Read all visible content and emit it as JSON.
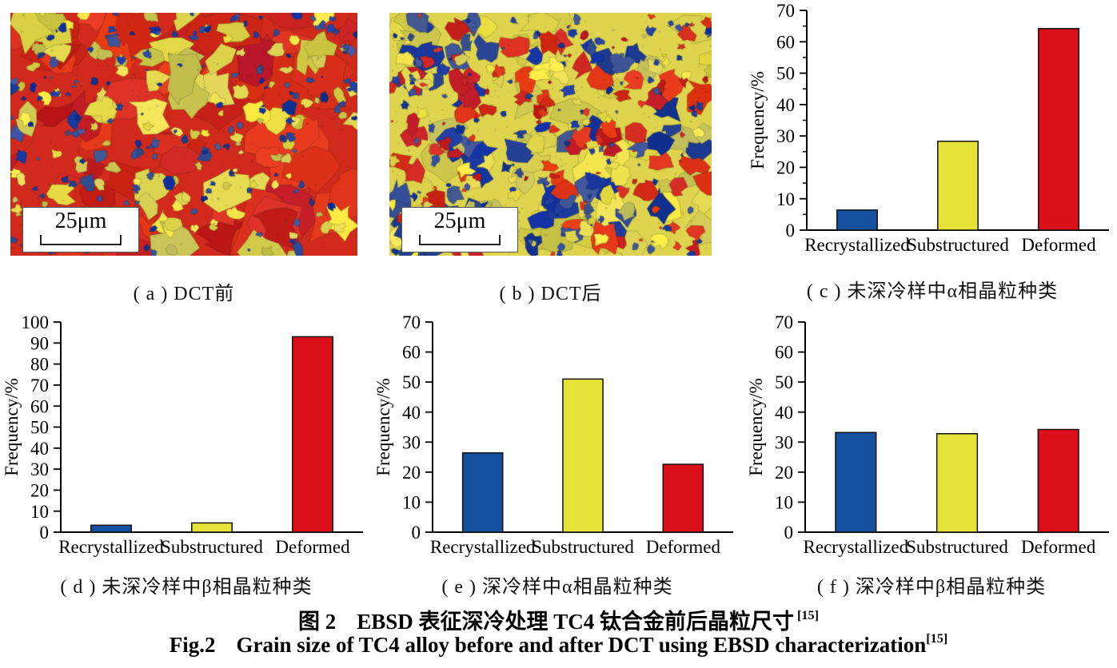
{
  "page": {
    "background": "#ffffff"
  },
  "micrographs": {
    "a": {
      "caption": "( a ) DCT前",
      "scale_bar_label": "25μm"
    },
    "b": {
      "caption": "( b ) DCT后",
      "scale_bar_label": "25μm"
    }
  },
  "ebsd_palette": {
    "red": "#d2291d",
    "yellow": "#ded44e",
    "blue": "#28439a"
  },
  "bar_colors": {
    "recrystallized": "#15509e",
    "substructured": "#e5e338",
    "deformed": "#db0f1a"
  },
  "chart_data": [
    {
      "id": "c",
      "type": "bar",
      "caption": "( c ) 未深冷样中α相晶粒种类",
      "categories": [
        "Recrystallized",
        "Substructured",
        "Deformed"
      ],
      "values": [
        6.4,
        28.3,
        64.2
      ],
      "ylabel": "Frequency/%",
      "ylim": [
        0,
        70
      ],
      "ytick_step": 10,
      "minor_tick_step": 5,
      "bar_colors": [
        "#15509e",
        "#e5e338",
        "#db0f1a"
      ],
      "grid": false,
      "legend": "none"
    },
    {
      "id": "d",
      "type": "bar",
      "caption": "( d ) 未深冷样中β相晶粒种类",
      "categories": [
        "Recrystallized",
        "Substructured",
        "Deformed"
      ],
      "values": [
        3.3,
        4.4,
        93
      ],
      "ylabel": "Frequency/%",
      "ylim": [
        0,
        100
      ],
      "ytick_step": 10,
      "minor_tick_step": 0,
      "bar_colors": [
        "#15509e",
        "#e5e338",
        "#db0f1a"
      ],
      "grid": false,
      "legend": "none"
    },
    {
      "id": "e",
      "type": "bar",
      "caption": "( e ) 深冷样中α相晶粒种类",
      "categories": [
        "Recrystallized",
        "Substructured",
        "Deformed"
      ],
      "values": [
        26.4,
        51,
        22.6
      ],
      "ylabel": "Frequency/%",
      "ylim": [
        0,
        70
      ],
      "ytick_step": 10,
      "minor_tick_step": 0,
      "bar_colors": [
        "#15509e",
        "#e5e338",
        "#db0f1a"
      ],
      "grid": false,
      "legend": "none"
    },
    {
      "id": "f",
      "type": "bar",
      "caption": "( f ) 深冷样中β相晶粒种类",
      "categories": [
        "Recrystallized",
        "Substructured",
        "Deformed"
      ],
      "values": [
        33.2,
        32.8,
        34.2
      ],
      "ylabel": "Frequency/%",
      "ylim": [
        0,
        70
      ],
      "ytick_step": 10,
      "minor_tick_step": 0,
      "bar_colors": [
        "#15509e",
        "#e5e338",
        "#db0f1a"
      ],
      "grid": false,
      "legend": "none"
    }
  ],
  "figure_caption": {
    "zh_label": "图 2",
    "zh_text": "EBSD 表征深冷处理 TC4 钛合金前后晶粒尺寸",
    "zh_ref": "[15]",
    "en_label": "Fig.2",
    "en_text": "Grain size of TC4 alloy before and after DCT using EBSD characterization",
    "en_ref": "[15]"
  }
}
